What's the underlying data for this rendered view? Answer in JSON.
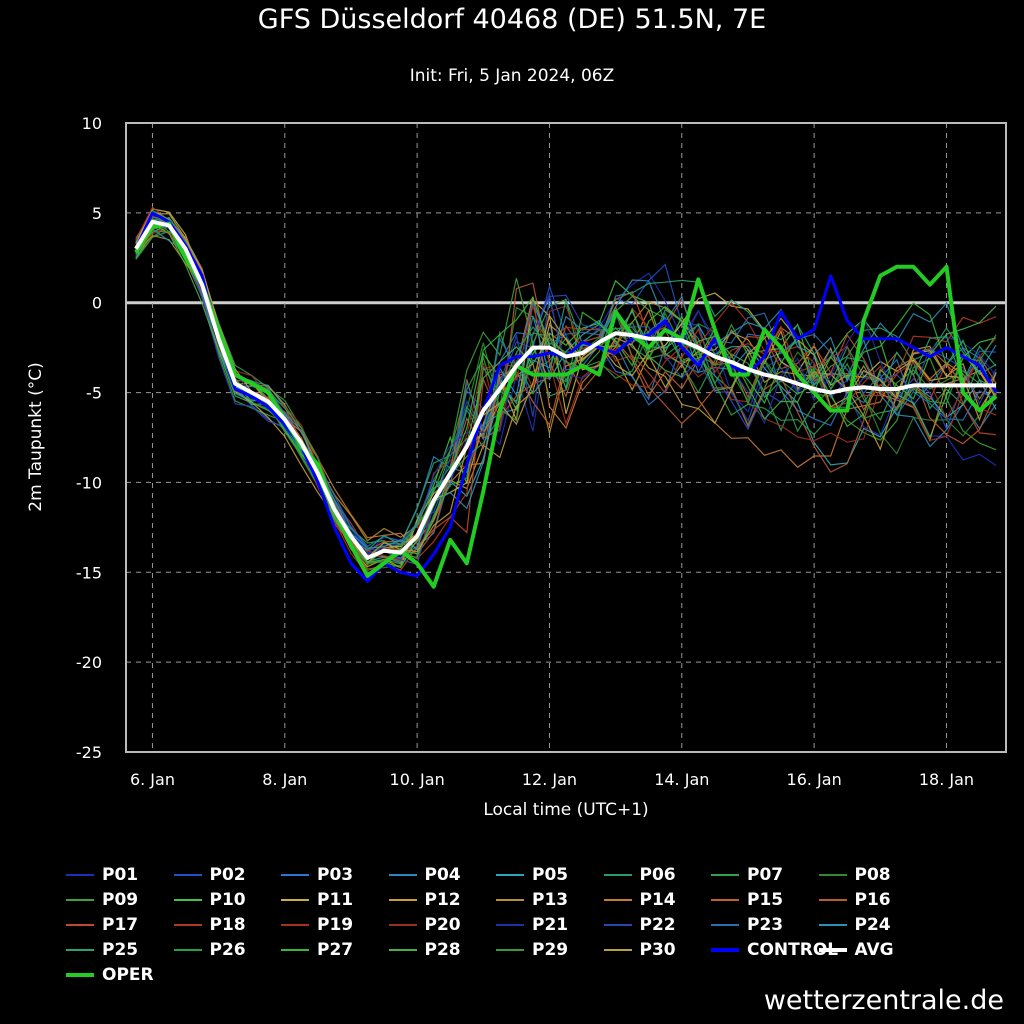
{
  "title": "GFS Düsseldorf 40468 (DE) 51.5N, 7E",
  "subtitle": "Init: Fri, 5 Jan 2024, 06Z",
  "watermark": "wetterzentrale.de",
  "colors": {
    "background": "#000000",
    "avg": "#ffffff",
    "control": "#0000ff",
    "oper": "#22cc22",
    "grid": "#9a9a9a",
    "frame": "#bbbbbb"
  },
  "chart_data": {
    "type": "line",
    "title": "GFS Düsseldorf 40468 (DE) 51.5N, 7E",
    "subtitle": "Init: Fri, 5 Jan 2024, 06Z",
    "xlabel": "Local time (UTC+1)",
    "ylabel": "2m Taupunkt (°C)",
    "ylim": [
      -25,
      10
    ],
    "xlim_days": [
      5.6,
      18.9
    ],
    "yticks": [
      10,
      5,
      0,
      -5,
      -10,
      -15,
      -20,
      -25
    ],
    "xticks": [
      {
        "day": 6,
        "label": "6. Jan"
      },
      {
        "day": 8,
        "label": "8. Jan"
      },
      {
        "day": 10,
        "label": "10. Jan"
      },
      {
        "day": 12,
        "label": "12. Jan"
      },
      {
        "day": 14,
        "label": "14. Jan"
      },
      {
        "day": 16,
        "label": "16. Jan"
      },
      {
        "day": 18,
        "label": "18. Jan"
      }
    ],
    "grid": true,
    "x": [
      5.75,
      6.0,
      6.25,
      6.5,
      6.75,
      7.0,
      7.25,
      7.5,
      7.75,
      8.0,
      8.25,
      8.5,
      8.75,
      9.0,
      9.25,
      9.5,
      9.75,
      10.0,
      10.25,
      10.5,
      10.75,
      11.0,
      11.25,
      11.5,
      11.75,
      12.0,
      12.25,
      12.5,
      12.75,
      13.0,
      13.25,
      13.5,
      13.75,
      14.0,
      14.25,
      14.5,
      14.75,
      15.0,
      15.25,
      15.5,
      15.75,
      16.0,
      16.25,
      16.5,
      16.75,
      17.0,
      17.25,
      17.5,
      17.75,
      18.0,
      18.25,
      18.5,
      18.75
    ],
    "series": [
      {
        "name": "AVG",
        "color": "#ffffff",
        "width": 4,
        "values": [
          3.0,
          4.5,
          4.3,
          3.0,
          1.0,
          -2.0,
          -4.5,
          -5.0,
          -5.5,
          -6.5,
          -7.8,
          -9.5,
          -11.5,
          -13.0,
          -14.2,
          -13.8,
          -13.9,
          -13.0,
          -11.0,
          -9.5,
          -8.0,
          -6.0,
          -4.8,
          -3.5,
          -2.5,
          -2.5,
          -3.0,
          -2.8,
          -2.2,
          -1.7,
          -1.8,
          -2.0,
          -2.0,
          -2.1,
          -2.5,
          -3.0,
          -3.3,
          -3.7,
          -4.0,
          -4.2,
          -4.5,
          -4.8,
          -5.0,
          -4.8,
          -4.7,
          -4.8,
          -4.8,
          -4.6,
          -4.6,
          -4.6,
          -4.6,
          -4.6,
          -4.6
        ]
      },
      {
        "name": "CONTROL",
        "color": "#0000ff",
        "width": 3,
        "values": [
          3.0,
          5.0,
          4.5,
          3.2,
          1.5,
          -2.0,
          -4.8,
          -5.2,
          -5.8,
          -6.8,
          -8.0,
          -10.0,
          -12.5,
          -14.5,
          -15.5,
          -14.5,
          -15.0,
          -15.2,
          -14.0,
          -12.5,
          -9.0,
          -6.0,
          -3.5,
          -3.0,
          -3.0,
          -2.8,
          -3.0,
          -2.2,
          -2.5,
          -2.8,
          -2.0,
          -1.8,
          -1.0,
          -2.5,
          -3.5,
          -2.0,
          -3.5,
          -4.0,
          -3.0,
          -0.5,
          -2.0,
          -1.5,
          1.5,
          -1.0,
          -2.0,
          -2.0,
          -2.0,
          -2.5,
          -3.0,
          -2.5,
          -3.0,
          -3.5,
          -5.0
        ]
      },
      {
        "name": "OPER",
        "color": "#22cc22",
        "width": 4,
        "values": [
          2.8,
          4.2,
          4.4,
          2.5,
          1.0,
          -1.5,
          -4.0,
          -4.5,
          -5.0,
          -6.5,
          -8.0,
          -9.0,
          -11.5,
          -13.5,
          -15.2,
          -14.5,
          -13.8,
          -14.5,
          -15.8,
          -13.2,
          -14.5,
          -10.5,
          -6.0,
          -3.5,
          -4.0,
          -4.0,
          -4.0,
          -3.5,
          -4.0,
          -0.5,
          -1.8,
          -2.5,
          -1.5,
          -2.0,
          1.3,
          -1.5,
          -4.0,
          -4.0,
          -1.5,
          -2.5,
          -4.0,
          -5.0,
          -6.0,
          -6.0,
          -1.0,
          1.5,
          2.0,
          2.0,
          1.0,
          2.0,
          -5.0,
          -6.0,
          -5.2
        ]
      }
    ],
    "ensemble_members": [
      "P01",
      "P02",
      "P03",
      "P04",
      "P05",
      "P06",
      "P07",
      "P08",
      "P09",
      "P10",
      "P11",
      "P12",
      "P13",
      "P14",
      "P15",
      "P16",
      "P17",
      "P18",
      "P19",
      "P20",
      "P21",
      "P22",
      "P23",
      "P24",
      "P25",
      "P26",
      "P27",
      "P28",
      "P29",
      "P30"
    ],
    "member_colors": [
      "#1f2fb8",
      "#2050cc",
      "#2a78c8",
      "#2a88c0",
      "#2ea8b8",
      "#2a9a6a",
      "#30a050",
      "#2e8a2e",
      "#3ca03c",
      "#44c044",
      "#c8b040",
      "#c8a030",
      "#b89030",
      "#c87a30",
      "#c06030",
      "#b85a30",
      "#c04a2a",
      "#b03a20",
      "#a83020",
      "#983020",
      "#2030a0",
      "#2848b0",
      "#2a70b0",
      "#2a90b8",
      "#28a078",
      "#28a048",
      "#38b838",
      "#48b040",
      "#3a9a3a",
      "#b8a040"
    ]
  },
  "legend": {
    "items": [
      {
        "label": "P01",
        "color": "#1f2fb8"
      },
      {
        "label": "P02",
        "color": "#2050cc"
      },
      {
        "label": "P03",
        "color": "#2a78c8"
      },
      {
        "label": "P04",
        "color": "#2a88c0"
      },
      {
        "label": "P05",
        "color": "#2ea8b8"
      },
      {
        "label": "P06",
        "color": "#2a9a6a"
      },
      {
        "label": "P07",
        "color": "#30a050"
      },
      {
        "label": "P08",
        "color": "#2e8a2e"
      },
      {
        "label": "P09",
        "color": "#3ca03c"
      },
      {
        "label": "P10",
        "color": "#44c044"
      },
      {
        "label": "P11",
        "color": "#c8b040"
      },
      {
        "label": "P12",
        "color": "#c8a030"
      },
      {
        "label": "P13",
        "color": "#b89030"
      },
      {
        "label": "P14",
        "color": "#c87a30"
      },
      {
        "label": "P15",
        "color": "#c06030"
      },
      {
        "label": "P16",
        "color": "#b85a30"
      },
      {
        "label": "P17",
        "color": "#c04a2a"
      },
      {
        "label": "P18",
        "color": "#b03a20"
      },
      {
        "label": "P19",
        "color": "#a83020"
      },
      {
        "label": "P20",
        "color": "#983020"
      },
      {
        "label": "P21",
        "color": "#2030a0"
      },
      {
        "label": "P22",
        "color": "#2848b0"
      },
      {
        "label": "P23",
        "color": "#2a70b0"
      },
      {
        "label": "P24",
        "color": "#2a90b8"
      },
      {
        "label": "P25",
        "color": "#28a078"
      },
      {
        "label": "P26",
        "color": "#28a048"
      },
      {
        "label": "P27",
        "color": "#38b838"
      },
      {
        "label": "P28",
        "color": "#48b040"
      },
      {
        "label": "P29",
        "color": "#3a9a3a"
      },
      {
        "label": "P30",
        "color": "#b8a040"
      },
      {
        "label": "CONTROL",
        "color": "#0000ff",
        "bold": true
      },
      {
        "label": "AVG",
        "color": "#ffffff",
        "bold": true
      },
      {
        "label": "OPER",
        "color": "#22cc22",
        "bold": true
      }
    ]
  }
}
